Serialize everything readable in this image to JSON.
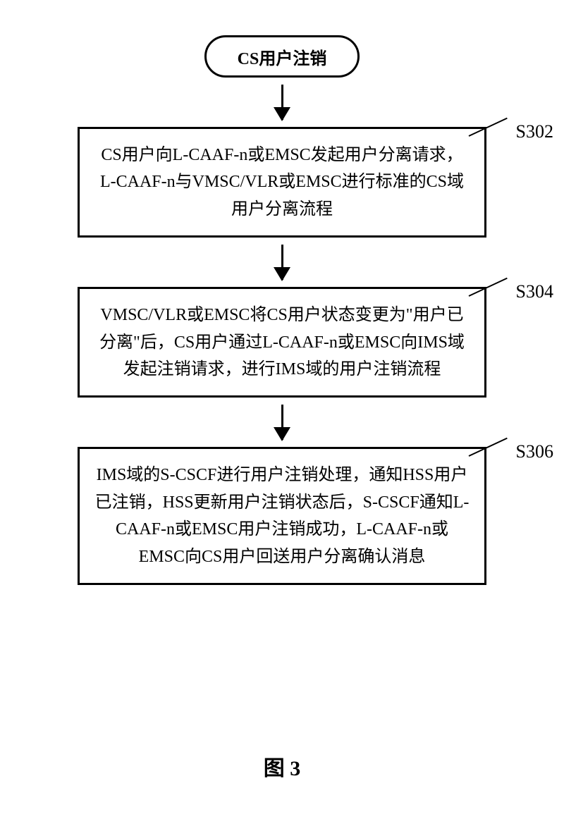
{
  "flowchart": {
    "start_label": "CS用户注销",
    "steps": [
      {
        "id": "S302",
        "text": "CS用户向L-CAAF-n或EMSC发起用户分离请求，L-CAAF-n与VMSC/VLR或EMSC进行标准的CS域用户分离流程"
      },
      {
        "id": "S304",
        "text": "VMSC/VLR或EMSC将CS用户状态变更为\"用户已分离\"后，CS用户通过L-CAAF-n或EMSC向IMS域发起注销请求，进行IMS域的用户注销流程"
      },
      {
        "id": "S306",
        "text": "IMS域的S-CSCF进行用户注销处理，通知HSS用户已注销，HSS更新用户注销状态后，S-CSCF通知L-CAAF-n或EMSC用户注销成功，L-CAAF-n或EMSC向CS用户回送用户分离确认消息"
      }
    ],
    "figure_label": "图 3",
    "colors": {
      "border": "#000000",
      "background": "#ffffff",
      "text": "#000000"
    },
    "box_border_width": 3,
    "font_size_box": 24,
    "font_size_label": 26,
    "font_size_figure": 30
  }
}
